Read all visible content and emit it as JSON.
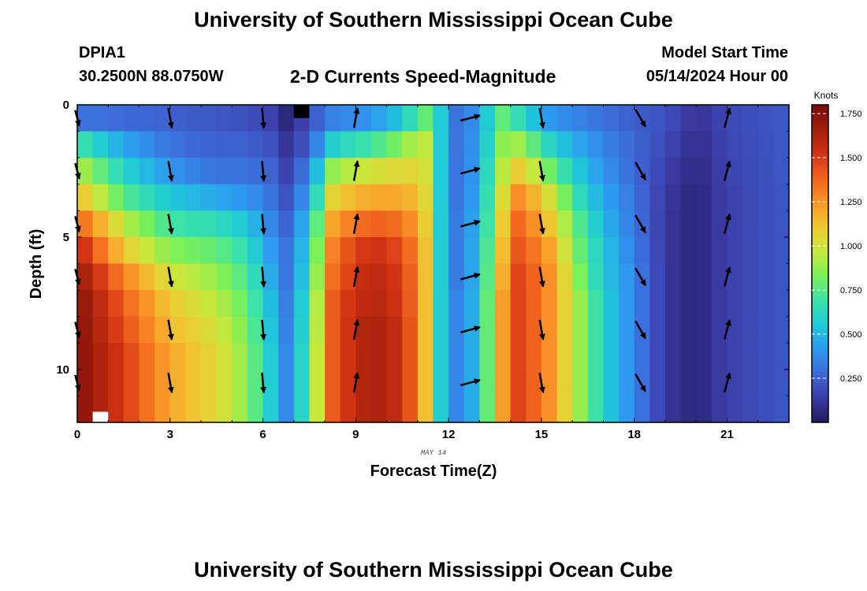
{
  "header": {
    "title": "University of Southern Mississippi Ocean Cube",
    "station_id": "DPIA1",
    "coordinates": "30.2500N  88.0750W",
    "chart_title": "2-D Currents Speed-Magnitude",
    "model_start_label": "Model Start Time",
    "model_start_value": "05/14/2024 Hour 00"
  },
  "footer": {
    "title": "University of Southern Mississippi Ocean Cube"
  },
  "chart_data": {
    "type": "heatmap",
    "title": "2-D Currents Speed-Magnitude",
    "xlabel": "Forecast Time(Z)",
    "ylabel": "Depth (ft)",
    "x_sublabel": "MAY 14",
    "xlim": [
      0,
      23
    ],
    "ylim": [
      0,
      12
    ],
    "y_inverted": true,
    "x_ticks": [
      0,
      3,
      6,
      9,
      12,
      15,
      18,
      21
    ],
    "y_ticks": [
      0,
      5,
      10
    ],
    "time_step_hours": 0.5,
    "depth_step_ft": 1,
    "colorbar": {
      "title": "Knots",
      "ticks": [
        0.25,
        0.5,
        0.75,
        1.0,
        1.25,
        1.5,
        1.75
      ],
      "tick_labels": [
        "0.250",
        "0.500",
        "0.750",
        "1.000",
        "1.250",
        "1.500",
        "1.750"
      ],
      "range": [
        0,
        1.8
      ],
      "colormap": [
        "#1e1a5a",
        "#3c3ca8",
        "#3c6ad8",
        "#2e9af0",
        "#1ec9d8",
        "#3ce2a8",
        "#7af05a",
        "#c8e83c",
        "#f0c832",
        "#fa9628",
        "#f0641e",
        "#d23214",
        "#a01e0a",
        "#7a0a0a"
      ]
    },
    "speed_profiles": [
      {
        "t": 0,
        "speeds": [
          0.3,
          0.7,
          0.95,
          1.15,
          1.4,
          1.6,
          1.7,
          1.75,
          1.75,
          1.75,
          1.75,
          1.75
        ]
      },
      {
        "t": 1.5,
        "speeds": [
          0.28,
          0.45,
          0.6,
          0.75,
          0.95,
          1.1,
          1.3,
          1.4,
          1.45,
          1.5,
          1.5,
          1.5
        ]
      },
      {
        "t": 3,
        "speeds": [
          0.25,
          0.3,
          0.4,
          0.55,
          0.7,
          0.85,
          1.0,
          1.1,
          1.15,
          1.2,
          1.2,
          1.2
        ]
      },
      {
        "t": 4.5,
        "speeds": [
          0.22,
          0.25,
          0.3,
          0.45,
          0.65,
          0.78,
          0.88,
          0.95,
          1.0,
          1.05,
          1.05,
          1.05
        ]
      },
      {
        "t": 5.5,
        "speeds": [
          0.2,
          0.25,
          0.3,
          0.4,
          0.55,
          0.65,
          0.72,
          0.78,
          0.82,
          0.85,
          0.85,
          0.85
        ]
      },
      {
        "t": 6.3,
        "speeds": [
          0.15,
          0.2,
          0.25,
          0.3,
          0.35,
          0.4,
          0.45,
          0.5,
          0.52,
          0.55,
          0.55,
          0.55
        ]
      },
      {
        "t": 6.8,
        "speeds": [
          0.05,
          0.1,
          0.15,
          0.2,
          0.25,
          0.3,
          0.3,
          0.32,
          0.33,
          0.35,
          0.35,
          0.35
        ]
      },
      {
        "t": 7.5,
        "speeds": [
          0.2,
          0.25,
          0.35,
          0.45,
          0.55,
          0.6,
          0.65,
          0.7,
          0.72,
          0.75,
          0.75,
          0.75
        ]
      },
      {
        "t": 8.3,
        "speeds": [
          0.35,
          0.6,
          0.9,
          1.1,
          1.25,
          1.35,
          1.4,
          1.45,
          1.45,
          1.45,
          1.45,
          1.45
        ]
      },
      {
        "t": 9.5,
        "speeds": [
          0.4,
          0.7,
          1.0,
          1.2,
          1.4,
          1.55,
          1.6,
          1.62,
          1.65,
          1.65,
          1.65,
          1.65
        ]
      },
      {
        "t": 10.5,
        "speeds": [
          0.55,
          0.85,
          1.05,
          1.2,
          1.35,
          1.45,
          1.5,
          1.52,
          1.55,
          1.55,
          1.55,
          1.55
        ]
      },
      {
        "t": 11.2,
        "speeds": [
          0.8,
          1.0,
          1.05,
          1.1,
          1.15,
          1.2,
          1.2,
          1.2,
          1.2,
          1.2,
          1.2,
          1.2
        ]
      },
      {
        "t": 11.6,
        "speeds": [
          0.65,
          0.65,
          0.65,
          0.65,
          0.65,
          0.65,
          0.65,
          0.65,
          0.65,
          0.65,
          0.65,
          0.65
        ]
      },
      {
        "t": 12.2,
        "speeds": [
          0.3,
          0.3,
          0.3,
          0.3,
          0.32,
          0.32,
          0.32,
          0.35,
          0.35,
          0.35,
          0.35,
          0.35
        ]
      },
      {
        "t": 13.0,
        "speeds": [
          0.4,
          0.42,
          0.44,
          0.46,
          0.48,
          0.5,
          0.5,
          0.52,
          0.52,
          0.52,
          0.52,
          0.52
        ]
      },
      {
        "t": 13.6,
        "speeds": [
          0.8,
          0.85,
          0.9,
          0.95,
          1.0,
          1.05,
          1.1,
          1.15,
          1.15,
          1.15,
          1.15,
          1.15
        ]
      },
      {
        "t": 14.3,
        "speeds": [
          0.65,
          0.9,
          1.1,
          1.3,
          1.4,
          1.45,
          1.5,
          1.5,
          1.5,
          1.5,
          1.5,
          1.5
        ]
      },
      {
        "t": 15.3,
        "speeds": [
          0.4,
          0.6,
          0.8,
          1.0,
          1.1,
          1.2,
          1.25,
          1.25,
          1.25,
          1.25,
          1.25,
          1.25
        ]
      },
      {
        "t": 16.2,
        "speeds": [
          0.35,
          0.45,
          0.55,
          0.65,
          0.75,
          0.8,
          0.85,
          0.9,
          0.9,
          0.9,
          0.9,
          0.9
        ]
      },
      {
        "t": 17.0,
        "speeds": [
          0.3,
          0.35,
          0.4,
          0.45,
          0.5,
          0.55,
          0.55,
          0.6,
          0.6,
          0.6,
          0.6,
          0.6
        ]
      },
      {
        "t": 17.8,
        "speeds": [
          0.25,
          0.28,
          0.3,
          0.33,
          0.35,
          0.37,
          0.4,
          0.4,
          0.4,
          0.4,
          0.4,
          0.4
        ]
      },
      {
        "t": 19.0,
        "speeds": [
          0.2,
          0.18,
          0.15,
          0.13,
          0.12,
          0.12,
          0.12,
          0.12,
          0.12,
          0.12,
          0.12,
          0.12
        ]
      },
      {
        "t": 20.0,
        "speeds": [
          0.1,
          0.08,
          0.06,
          0.05,
          0.05,
          0.05,
          0.05,
          0.05,
          0.05,
          0.05,
          0.05,
          0.05
        ]
      },
      {
        "t": 21.0,
        "speeds": [
          0.18,
          0.17,
          0.16,
          0.15,
          0.15,
          0.15,
          0.15,
          0.15,
          0.15,
          0.15,
          0.15,
          0.15
        ]
      },
      {
        "t": 23.0,
        "speeds": [
          0.22,
          0.22,
          0.22,
          0.22,
          0.22,
          0.22,
          0.22,
          0.22,
          0.22,
          0.22,
          0.22,
          0.22
        ]
      }
    ],
    "vectors": {
      "depths_ft": [
        0.5,
        2.5,
        4.5,
        6.5,
        8.5,
        10.5
      ],
      "columns": [
        {
          "t": 0,
          "dir_deg": 165,
          "len": 0.6
        },
        {
          "t": 3,
          "dir_deg": 170,
          "len": 0.75
        },
        {
          "t": 6,
          "dir_deg": 175,
          "len": 0.75
        },
        {
          "t": 9,
          "dir_deg": 10,
          "len": 0.75
        },
        {
          "t": 12.7,
          "dir_deg": 75,
          "len": 0.75
        },
        {
          "t": 15,
          "dir_deg": 170,
          "len": 0.75
        },
        {
          "t": 18.2,
          "dir_deg": 150,
          "len": 0.75
        },
        {
          "t": 21,
          "dir_deg": 15,
          "len": 0.75
        }
      ]
    },
    "missing_cells": [
      {
        "t": 7.0,
        "depth": 0.0,
        "color": "#000000"
      },
      {
        "t": 0.5,
        "depth": 11.6,
        "color": "#ffffff"
      }
    ]
  }
}
